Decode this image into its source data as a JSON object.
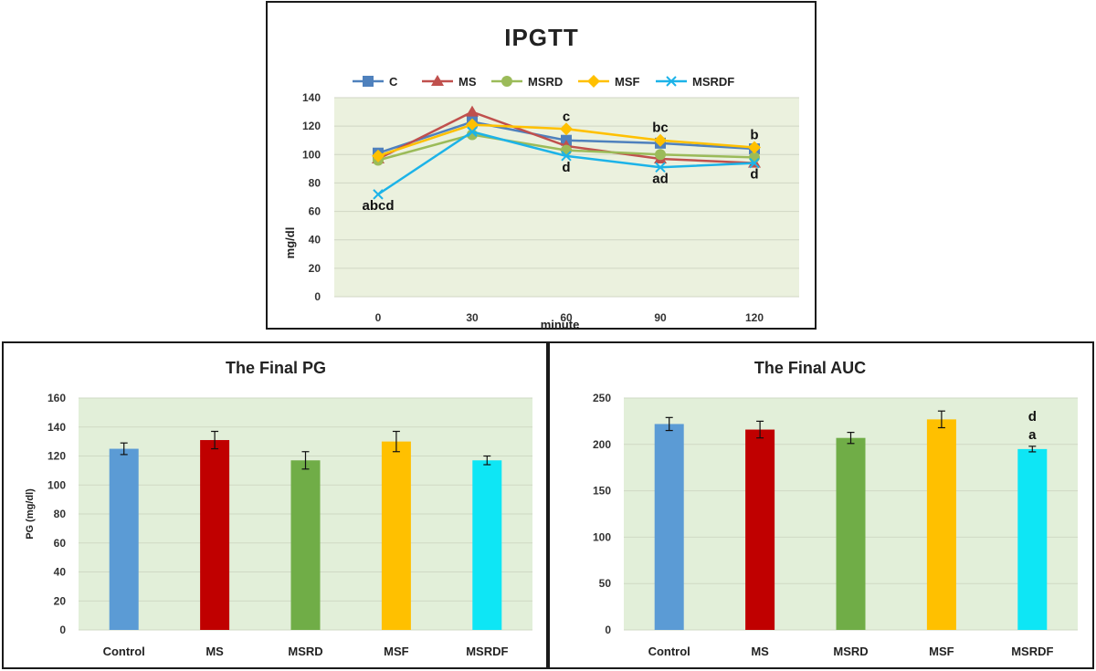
{
  "chart_data": [
    {
      "type": "line",
      "title": "IPGTT",
      "xlabel": "minute",
      "ylabel": "mg/dl",
      "ylim": [
        0,
        140
      ],
      "yticks": [
        "0",
        "20",
        "40",
        "60",
        "80",
        "100",
        "120",
        "140"
      ],
      "x": [
        "0",
        "30",
        "60",
        "90",
        "120"
      ],
      "legend_position": "top",
      "series": [
        {
          "name": "C",
          "color": "#4f81bd",
          "marker": "square",
          "values": [
            101,
            123,
            110,
            108,
            104
          ]
        },
        {
          "name": "MS",
          "color": "#c0504d",
          "marker": "triangle",
          "values": [
            97,
            130,
            106,
            97,
            94
          ]
        },
        {
          "name": "MSRD",
          "color": "#9bbb59",
          "marker": "circle",
          "values": [
            96,
            114,
            103,
            100,
            98
          ]
        },
        {
          "name": "MSF",
          "color": "#ffc000",
          "marker": "diamond",
          "values": [
            99,
            121,
            118,
            110,
            105
          ]
        },
        {
          "name": "MSRDF",
          "color": "#1cb3e8",
          "marker": "x",
          "values": [
            72,
            116,
            99,
            91,
            94
          ]
        }
      ],
      "annotations": [
        {
          "text": "abcd",
          "x": "0",
          "y": 72,
          "place": "below"
        },
        {
          "text": "c",
          "x": "60",
          "y": 118,
          "place": "above"
        },
        {
          "text": "d",
          "x": "60",
          "y": 99,
          "place": "below"
        },
        {
          "text": "bc",
          "x": "90",
          "y": 110,
          "place": "above"
        },
        {
          "text": "ad",
          "x": "90",
          "y": 91,
          "place": "below"
        },
        {
          "text": "b",
          "x": "120",
          "y": 105,
          "place": "above"
        },
        {
          "text": "d",
          "x": "120",
          "y": 94,
          "place": "below"
        }
      ]
    },
    {
      "type": "bar",
      "title": "The Final PG",
      "ylabel": "PG  (mg/dl)",
      "xlabel": "",
      "ylim": [
        0,
        160
      ],
      "yticks": [
        "0",
        "20",
        "40",
        "60",
        "80",
        "100",
        "120",
        "140",
        "160"
      ],
      "categories": [
        "Control",
        "MS",
        "MSRD",
        "MSF",
        "MSRDF"
      ],
      "values": [
        125,
        131,
        117,
        130,
        117
      ],
      "errors": [
        4,
        6,
        6,
        7,
        3
      ],
      "colors": [
        "#5b9bd5",
        "#c00000",
        "#70ad47",
        "#ffc000",
        "#0ee6f5"
      ],
      "annotations": []
    },
    {
      "type": "bar",
      "title": "The Final AUC",
      "ylabel": "",
      "xlabel": "",
      "ylim": [
        0,
        250
      ],
      "yticks": [
        "0",
        "50",
        "100",
        "150",
        "200",
        "250"
      ],
      "categories": [
        "Control",
        "MS",
        "MSRD",
        "MSF",
        "MSRDF"
      ],
      "values": [
        222,
        216,
        207,
        227,
        195
      ],
      "errors": [
        7,
        9,
        6,
        9,
        3
      ],
      "colors": [
        "#5b9bd5",
        "#c00000",
        "#70ad47",
        "#ffc000",
        "#0ee6f5"
      ],
      "annotations": [
        {
          "text": "d",
          "category": "MSRDF",
          "line": 0
        },
        {
          "text": "a",
          "category": "MSRDF",
          "line": 1
        }
      ]
    }
  ]
}
